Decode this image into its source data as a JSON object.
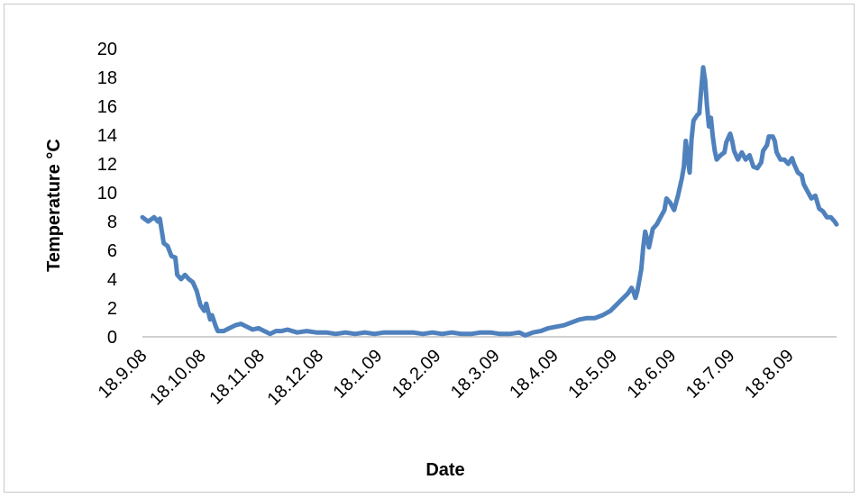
{
  "chart_data": {
    "type": "line",
    "title": "",
    "xlabel": "Date",
    "ylabel": "Temperature °C",
    "ylim": [
      0,
      20
    ],
    "yticks": [
      "0",
      "2",
      "4",
      "6",
      "8",
      "10",
      "12",
      "14",
      "16",
      "18",
      "20"
    ],
    "xticks": [
      "18.9.08",
      "18.10.08",
      "18.11.08",
      "18.12.08",
      "18.1.09",
      "18.2.09",
      "18.3.09",
      "18.4.09",
      "18.5.09",
      "18.6.09",
      "18.7.09",
      "18.8.09"
    ],
    "grid": false,
    "legend": "none",
    "line_color": "#4f81bd",
    "series": [
      {
        "values": [
          [
            0,
            8.3
          ],
          [
            3,
            8.0
          ],
          [
            6,
            8.3
          ],
          [
            8,
            8.0
          ],
          [
            9,
            8.2
          ],
          [
            11,
            6.5
          ],
          [
            13,
            6.3
          ],
          [
            15,
            5.6
          ],
          [
            17,
            5.5
          ],
          [
            18,
            4.3
          ],
          [
            20,
            4.0
          ],
          [
            22,
            4.3
          ],
          [
            24,
            4.0
          ],
          [
            26,
            3.8
          ],
          [
            28,
            3.2
          ],
          [
            30,
            2.2
          ],
          [
            32,
            1.8
          ],
          [
            33,
            2.3
          ],
          [
            35,
            1.2
          ],
          [
            36,
            1.5
          ],
          [
            38,
            0.7
          ],
          [
            39,
            0.4
          ],
          [
            42,
            0.4
          ],
          [
            45,
            0.6
          ],
          [
            48,
            0.8
          ],
          [
            51,
            0.9
          ],
          [
            54,
            0.7
          ],
          [
            57,
            0.5
          ],
          [
            60,
            0.6
          ],
          [
            63,
            0.4
          ],
          [
            66,
            0.2
          ],
          [
            69,
            0.4
          ],
          [
            72,
            0.4
          ],
          [
            75,
            0.5
          ],
          [
            80,
            0.3
          ],
          [
            85,
            0.4
          ],
          [
            90,
            0.3
          ],
          [
            95,
            0.3
          ],
          [
            100,
            0.2
          ],
          [
            105,
            0.3
          ],
          [
            110,
            0.2
          ],
          [
            115,
            0.3
          ],
          [
            120,
            0.2
          ],
          [
            125,
            0.3
          ],
          [
            130,
            0.3
          ],
          [
            135,
            0.3
          ],
          [
            140,
            0.3
          ],
          [
            145,
            0.2
          ],
          [
            150,
            0.3
          ],
          [
            155,
            0.2
          ],
          [
            160,
            0.3
          ],
          [
            165,
            0.2
          ],
          [
            170,
            0.2
          ],
          [
            175,
            0.3
          ],
          [
            180,
            0.3
          ],
          [
            185,
            0.2
          ],
          [
            190,
            0.2
          ],
          [
            195,
            0.3
          ],
          [
            198,
            0.1
          ],
          [
            202,
            0.3
          ],
          [
            206,
            0.4
          ],
          [
            210,
            0.6
          ],
          [
            214,
            0.7
          ],
          [
            218,
            0.8
          ],
          [
            222,
            1.0
          ],
          [
            226,
            1.2
          ],
          [
            230,
            1.3
          ],
          [
            234,
            1.3
          ],
          [
            238,
            1.5
          ],
          [
            242,
            1.8
          ],
          [
            245,
            2.2
          ],
          [
            248,
            2.6
          ],
          [
            251,
            3.0
          ],
          [
            253,
            3.4
          ],
          [
            254,
            3.1
          ],
          [
            255,
            2.7
          ],
          [
            256,
            3.2
          ],
          [
            258,
            4.7
          ],
          [
            259,
            6.2
          ],
          [
            260,
            7.3
          ],
          [
            261,
            6.8
          ],
          [
            262,
            6.2
          ],
          [
            264,
            7.5
          ],
          [
            266,
            7.8
          ],
          [
            268,
            8.3
          ],
          [
            270,
            8.8
          ],
          [
            271,
            9.6
          ],
          [
            273,
            9.3
          ],
          [
            275,
            8.8
          ],
          [
            277,
            9.8
          ],
          [
            279,
            11.0
          ],
          [
            280,
            11.8
          ],
          [
            281,
            13.6
          ],
          [
            282,
            12.5
          ],
          [
            283,
            11.4
          ],
          [
            284,
            13.7
          ],
          [
            285,
            15.0
          ],
          [
            287,
            15.4
          ],
          [
            288,
            15.5
          ],
          [
            289,
            17.2
          ],
          [
            290,
            18.7
          ],
          [
            291,
            17.8
          ],
          [
            292,
            16.0
          ],
          [
            293,
            14.6
          ],
          [
            294,
            15.2
          ],
          [
            295,
            13.9
          ],
          [
            296,
            12.9
          ],
          [
            297,
            12.3
          ],
          [
            299,
            12.6
          ],
          [
            301,
            12.8
          ],
          [
            302,
            13.5
          ],
          [
            304,
            14.1
          ],
          [
            305,
            13.6
          ],
          [
            306,
            12.9
          ],
          [
            308,
            12.3
          ],
          [
            310,
            12.8
          ],
          [
            312,
            12.3
          ],
          [
            314,
            12.6
          ],
          [
            316,
            11.8
          ],
          [
            318,
            11.7
          ],
          [
            320,
            12.1
          ],
          [
            321,
            12.9
          ],
          [
            323,
            13.3
          ],
          [
            324,
            13.9
          ],
          [
            326,
            13.9
          ],
          [
            327,
            13.6
          ],
          [
            328,
            12.8
          ],
          [
            330,
            12.3
          ],
          [
            332,
            12.3
          ],
          [
            334,
            12.0
          ],
          [
            336,
            12.4
          ],
          [
            337,
            12.0
          ],
          [
            339,
            11.4
          ],
          [
            341,
            11.2
          ],
          [
            342,
            10.6
          ],
          [
            344,
            10.1
          ],
          [
            346,
            9.6
          ],
          [
            348,
            9.8
          ],
          [
            350,
            8.9
          ],
          [
            352,
            8.7
          ],
          [
            354,
            8.3
          ],
          [
            356,
            8.3
          ],
          [
            358,
            8.0
          ],
          [
            359,
            7.8
          ]
        ]
      }
    ]
  }
}
